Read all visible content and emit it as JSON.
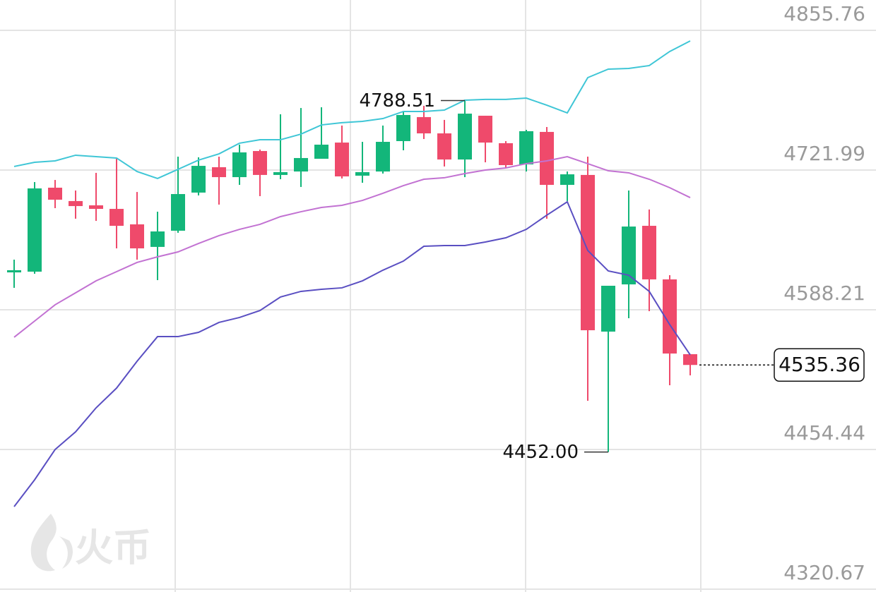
{
  "chart_data": {
    "type": "candlestick",
    "ylim": [
      4320.67,
      4855.76
    ],
    "yticks": [
      4320.67,
      4454.44,
      4588.21,
      4721.99,
      4855.76
    ],
    "grid": true,
    "up_color": "#13b67a",
    "down_color": "#ef4a6b",
    "candles": {
      "open": [
        4624.0,
        4624.7,
        4705.1,
        4692.3,
        4688.2,
        4684.8,
        4670.0,
        4648.4,
        4663.9,
        4700.4,
        4724.7,
        4715.2,
        4740.2,
        4717.3,
        4720.6,
        4732.8,
        4748.3,
        4716.6,
        4720.6,
        4749.7,
        4772.7,
        4757.1,
        4732.1,
        4774.0,
        4747.7,
        4727.4,
        4758.5,
        4707.8,
        4717.3,
        4567.3,
        4612.5,
        4668.6,
        4617.3,
        4545.7
      ],
      "high": [
        4636.2,
        4710.5,
        4712.5,
        4702.4,
        4719.3,
        4732.8,
        4701.0,
        4682.1,
        4734.8,
        4734.2,
        4734.8,
        4746.3,
        4741.6,
        4775.4,
        4781.4,
        4782.1,
        4764.6,
        4749.0,
        4764.6,
        4778.1,
        4783.5,
        4770.0,
        4788.51,
        4774.0,
        4749.7,
        4760.5,
        4763.2,
        4720.6,
        4734.8,
        4611.2,
        4702.4,
        4684.2,
        4621.3,
        4545.7
      ],
      "low": [
        4609.2,
        4622.7,
        4685.5,
        4675.4,
        4673.3,
        4647.0,
        4636.2,
        4616.6,
        4661.9,
        4697.7,
        4688.9,
        4707.8,
        4697.0,
        4713.2,
        4705.8,
        4732.8,
        4713.9,
        4709.8,
        4718.6,
        4740.9,
        4751.7,
        4725.4,
        4715.2,
        4729.4,
        4724.0,
        4720.6,
        4675.4,
        4692.3,
        4501.1,
        4452.0,
        4580.1,
        4586.9,
        4515.9,
        4525.4
      ],
      "close": [
        4626.1,
        4704.4,
        4693.6,
        4687.5,
        4684.8,
        4668.6,
        4647.0,
        4663.2,
        4699.0,
        4726.0,
        4715.2,
        4738.9,
        4717.3,
        4720.0,
        4733.5,
        4746.3,
        4715.9,
        4720.0,
        4749.0,
        4774.7,
        4757.1,
        4732.1,
        4776.0,
        4748.3,
        4726.7,
        4759.2,
        4707.8,
        4717.9,
        4568.6,
        4611.2,
        4667.9,
        4617.3,
        4546.3,
        4535.36
      ]
    },
    "bands": [
      {
        "color": "#3fc6d6",
        "values": [
          4725.4,
          4729.4,
          4730.8,
          4736.2,
          4734.8,
          4733.5,
          4720.6,
          4713.9,
          4722.7,
          4731.5,
          4737.5,
          4747.7,
          4751.0,
          4751.0,
          4756.4,
          4765.2,
          4767.3,
          4768.6,
          4771.3,
          4778.1,
          4778.1,
          4779.4,
          4788.9,
          4789.6,
          4789.6,
          4790.9,
          4784.1,
          4776.7,
          4810.5,
          4818.6,
          4819.3,
          4822.0,
          4835.5,
          4845.6
        ]
      },
      {
        "color": "#c272d2",
        "values": [
          4561.9,
          4577.4,
          4593.0,
          4604.4,
          4615.9,
          4624.7,
          4633.5,
          4638.9,
          4643.6,
          4651.7,
          4659.2,
          4665.2,
          4670.0,
          4677.4,
          4682.1,
          4686.2,
          4688.2,
          4692.9,
          4699.7,
          4707.1,
          4713.2,
          4714.6,
          4718.6,
          4722.0,
          4724.0,
          4728.1,
          4730.8,
          4734.8,
          4728.1,
          4721.3,
          4719.3,
          4713.2,
          4705.1,
          4695.6
        ]
      },
      {
        "color": "#5a4fc2",
        "values": [
          4399.7,
          4425.4,
          4454.4,
          4471.3,
          4494.3,
          4513.2,
          4538.9,
          4562.5,
          4562.5,
          4566.6,
          4576.1,
          4580.8,
          4587.5,
          4600.4,
          4605.8,
          4607.8,
          4609.2,
          4615.9,
          4626.1,
          4634.8,
          4649.0,
          4649.7,
          4649.7,
          4653.1,
          4657.1,
          4665.2,
          4678.8,
          4691.6,
          4645.0,
          4625.4,
          4621.3,
          4605.8,
          4574.0,
          4545.0
        ]
      }
    ],
    "annotations": [
      {
        "value": 4788.51,
        "label": "4788.51"
      },
      {
        "value": 4452.0,
        "label": "4452.00"
      }
    ],
    "last_price": {
      "value": 4535.36,
      "label": "4535.36"
    },
    "watermark": "火币"
  }
}
